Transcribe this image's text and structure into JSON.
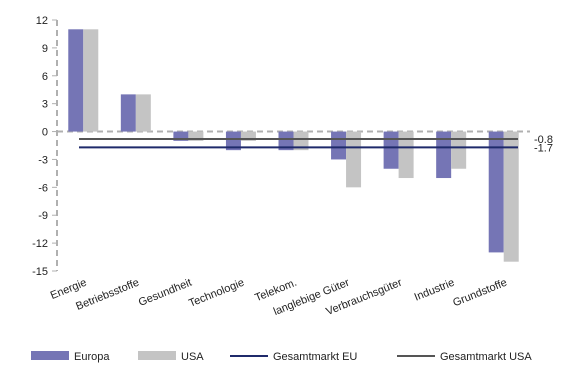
{
  "chart_data": {
    "type": "bar",
    "title": "",
    "xlabel": "",
    "ylabel": "",
    "ylim": [
      -15,
      12
    ],
    "yticks": [
      12,
      9,
      6,
      3,
      0,
      -3,
      -6,
      -9,
      -12,
      -15
    ],
    "grid": false,
    "legend_position": "bottom",
    "categories": [
      "Energie",
      "Betriebsstoffe",
      "Gesundheit",
      "Technologie",
      "Telekom.",
      "langlebige Güter",
      "Verbrauchsgüter",
      "Industrie",
      "Grundstoffe"
    ],
    "series": [
      {
        "name": "Europa",
        "values": [
          11,
          4,
          -1,
          -2,
          -2,
          -3,
          -4,
          -5,
          -13
        ],
        "color": "#7575b5"
      },
      {
        "name": "USA",
        "values": [
          11,
          4,
          -1,
          -1,
          -2,
          -6,
          -5,
          -4,
          -14
        ],
        "color": "#c4c4c4"
      }
    ],
    "reference_lines": [
      {
        "name": "Gesamtmarkt EU",
        "value": -1.7,
        "label": "-1.7",
        "color": "#1f2a6b"
      },
      {
        "name": "Gesamtmarkt USA",
        "value": -0.8,
        "label": "-0.8",
        "color": "#555555"
      }
    ]
  }
}
